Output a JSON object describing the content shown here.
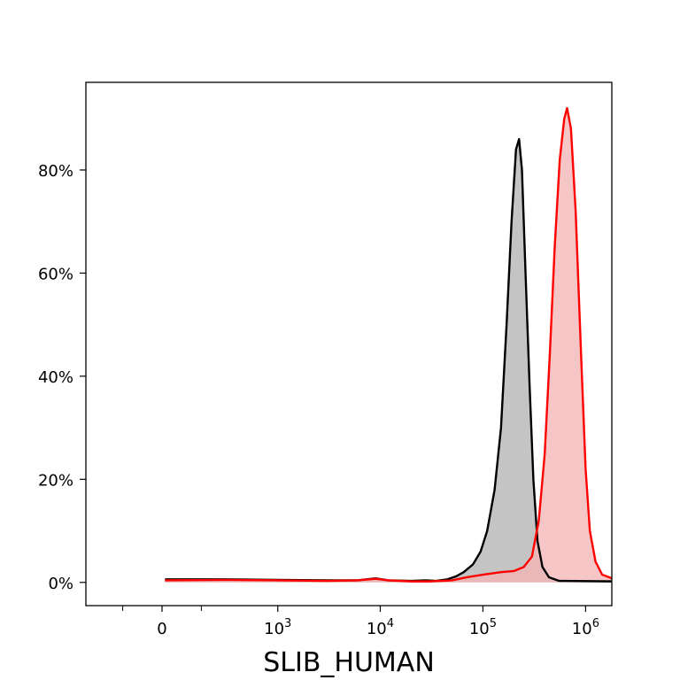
{
  "chart_data": {
    "type": "area",
    "title": "",
    "xlabel": "SLIB_HUMAN",
    "ylabel": "",
    "x_scale": "biexponential",
    "xlim": [
      -400,
      1800000
    ],
    "ylim": [
      -0.045,
      0.97
    ],
    "grid": false,
    "legend": "none",
    "x_ticks": [
      {
        "value": 0,
        "label": "0"
      },
      {
        "value": 1000,
        "label": "10",
        "sup": "3"
      },
      {
        "value": 10000,
        "label": "10",
        "sup": "4"
      },
      {
        "value": 100000,
        "label": "10",
        "sup": "5"
      },
      {
        "value": 1000000,
        "label": "10",
        "sup": "6"
      }
    ],
    "x_minor_ticks": [
      -150,
      150
    ],
    "y_ticks": [
      {
        "value": 0,
        "label": "0%"
      },
      {
        "value": 0.2,
        "label": "20%"
      },
      {
        "value": 0.4,
        "label": "40%"
      },
      {
        "value": 0.6,
        "label": "60%"
      },
      {
        "value": 0.8,
        "label": "80%"
      }
    ],
    "series": [
      {
        "color": "#000000",
        "fill": "#b3b3b3",
        "points": [
          [
            10,
            0.006
          ],
          [
            300,
            0.006
          ],
          [
            1000,
            0.005
          ],
          [
            3000,
            0.004
          ],
          [
            6000,
            0.004
          ],
          [
            9000,
            0.008
          ],
          [
            12000,
            0.004
          ],
          [
            20000,
            0.003
          ],
          [
            28000,
            0.004
          ],
          [
            35000,
            0.003
          ],
          [
            45000,
            0.006
          ],
          [
            55000,
            0.012
          ],
          [
            65000,
            0.02
          ],
          [
            80000,
            0.035
          ],
          [
            95000,
            0.06
          ],
          [
            110000,
            0.1
          ],
          [
            130000,
            0.18
          ],
          [
            150000,
            0.3
          ],
          [
            170000,
            0.5
          ],
          [
            190000,
            0.7
          ],
          [
            210000,
            0.84
          ],
          [
            225000,
            0.86
          ],
          [
            240000,
            0.8
          ],
          [
            260000,
            0.6
          ],
          [
            285000,
            0.38
          ],
          [
            310000,
            0.2
          ],
          [
            340000,
            0.08
          ],
          [
            380000,
            0.03
          ],
          [
            440000,
            0.01
          ],
          [
            550000,
            0.003
          ],
          [
            1800000,
            0.002
          ]
        ]
      },
      {
        "color": "#ff0000",
        "fill": "#f4b6b6",
        "points": [
          [
            10,
            0.004
          ],
          [
            300,
            0.005
          ],
          [
            1000,
            0.004
          ],
          [
            3000,
            0.003
          ],
          [
            6000,
            0.004
          ],
          [
            9000,
            0.007
          ],
          [
            12000,
            0.004
          ],
          [
            20000,
            0.002
          ],
          [
            30000,
            0.002
          ],
          [
            50000,
            0.004
          ],
          [
            70000,
            0.01
          ],
          [
            100000,
            0.015
          ],
          [
            150000,
            0.02
          ],
          [
            200000,
            0.022
          ],
          [
            250000,
            0.03
          ],
          [
            300000,
            0.05
          ],
          [
            350000,
            0.12
          ],
          [
            400000,
            0.25
          ],
          [
            450000,
            0.45
          ],
          [
            500000,
            0.65
          ],
          [
            560000,
            0.82
          ],
          [
            620000,
            0.9
          ],
          [
            660000,
            0.92
          ],
          [
            720000,
            0.88
          ],
          [
            800000,
            0.72
          ],
          [
            900000,
            0.45
          ],
          [
            1000000,
            0.22
          ],
          [
            1100000,
            0.1
          ],
          [
            1250000,
            0.04
          ],
          [
            1450000,
            0.015
          ],
          [
            1800000,
            0.008
          ]
        ]
      }
    ]
  }
}
